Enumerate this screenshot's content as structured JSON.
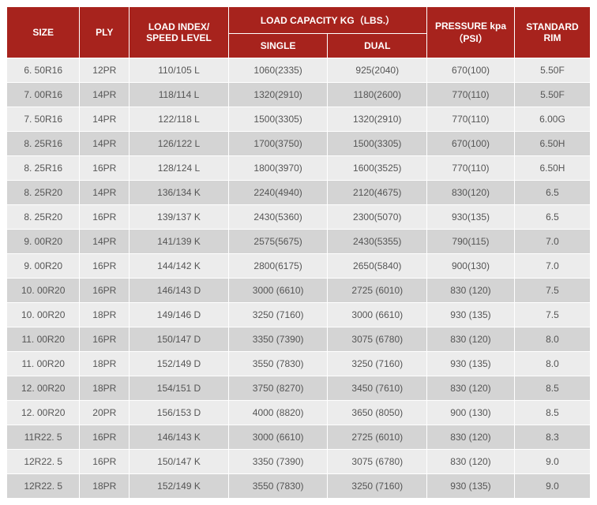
{
  "header": {
    "size": "SIZE",
    "ply": "PLY",
    "load_index": "LOAD INDEX/ SPEED LEVEL",
    "load_capacity": "LOAD CAPACITY KG（LBS.）",
    "single": "SINGLE",
    "dual": "DUAL",
    "pressure": "PRESSURE kpa（PSI）",
    "rim": "STANDARD RIM"
  },
  "rows": [
    {
      "size": "6. 50R16",
      "ply": "12PR",
      "idx": "110/105 L",
      "single": "1060(2335)",
      "dual": "925(2040)",
      "press": "670(100)",
      "rim": "5.50F"
    },
    {
      "size": "7. 00R16",
      "ply": "14PR",
      "idx": "118/114 L",
      "single": "1320(2910)",
      "dual": "1180(2600)",
      "press": "770(110)",
      "rim": "5.50F"
    },
    {
      "size": "7. 50R16",
      "ply": "14PR",
      "idx": "122/118 L",
      "single": "1500(3305)",
      "dual": "1320(2910)",
      "press": "770(110)",
      "rim": "6.00G"
    },
    {
      "size": "8. 25R16",
      "ply": "14PR",
      "idx": "126/122 L",
      "single": "1700(3750)",
      "dual": "1500(3305)",
      "press": "670(100)",
      "rim": "6.50H"
    },
    {
      "size": "8. 25R16",
      "ply": "16PR",
      "idx": "128/124 L",
      "single": "1800(3970)",
      "dual": "1600(3525)",
      "press": "770(110)",
      "rim": "6.50H"
    },
    {
      "size": "8. 25R20",
      "ply": "14PR",
      "idx": "136/134 K",
      "single": "2240(4940)",
      "dual": "2120(4675)",
      "press": "830(120)",
      "rim": "6.5"
    },
    {
      "size": "8. 25R20",
      "ply": "16PR",
      "idx": "139/137 K",
      "single": "2430(5360)",
      "dual": "2300(5070)",
      "press": "930(135)",
      "rim": "6.5"
    },
    {
      "size": "9. 00R20",
      "ply": "14PR",
      "idx": "141/139 K",
      "single": "2575(5675)",
      "dual": "2430(5355)",
      "press": "790(115)",
      "rim": "7.0"
    },
    {
      "size": "9. 00R20",
      "ply": "16PR",
      "idx": "144/142 K",
      "single": "2800(6175)",
      "dual": "2650(5840)",
      "press": "900(130)",
      "rim": "7.0"
    },
    {
      "size": "10. 00R20",
      "ply": "16PR",
      "idx": "146/143 D",
      "single": "3000 (6610)",
      "dual": "2725 (6010)",
      "press": "830 (120)",
      "rim": "7.5"
    },
    {
      "size": "10. 00R20",
      "ply": "18PR",
      "idx": "149/146 D",
      "single": "3250 (7160)",
      "dual": "3000 (6610)",
      "press": "930 (135)",
      "rim": "7.5"
    },
    {
      "size": "11. 00R20",
      "ply": "16PR",
      "idx": "150/147 D",
      "single": "3350 (7390)",
      "dual": "3075 (6780)",
      "press": "830 (120)",
      "rim": "8.0"
    },
    {
      "size": "11. 00R20",
      "ply": "18PR",
      "idx": "152/149 D",
      "single": "3550 (7830)",
      "dual": "3250 (7160)",
      "press": "930 (135)",
      "rim": "8.0"
    },
    {
      "size": "12. 00R20",
      "ply": "18PR",
      "idx": "154/151 D",
      "single": "3750 (8270)",
      "dual": "3450 (7610)",
      "press": "830 (120)",
      "rim": "8.5"
    },
    {
      "size": "12. 00R20",
      "ply": "20PR",
      "idx": "156/153 D",
      "single": "4000 (8820)",
      "dual": "3650 (8050)",
      "press": "900 (130)",
      "rim": "8.5"
    },
    {
      "size": "11R22. 5",
      "ply": "16PR",
      "idx": "146/143 K",
      "single": "3000 (6610)",
      "dual": "2725 (6010)",
      "press": "830 (120)",
      "rim": "8.3"
    },
    {
      "size": "12R22. 5",
      "ply": "16PR",
      "idx": "150/147 K",
      "single": "3350 (7390)",
      "dual": "3075 (6780)",
      "press": "830 (120)",
      "rim": "9.0"
    },
    {
      "size": "12R22. 5",
      "ply": "18PR",
      "idx": "152/149 K",
      "single": "3550 (7830)",
      "dual": "3250 (7160)",
      "press": "930 (135)",
      "rim": "9.0"
    }
  ],
  "colors": {
    "header_bg": "#a7231d",
    "header_fg": "#ffffff",
    "row_even_bg": "#ececec",
    "row_odd_bg": "#d4d4d4",
    "cell_fg": "#555555",
    "border": "#ffffff"
  }
}
